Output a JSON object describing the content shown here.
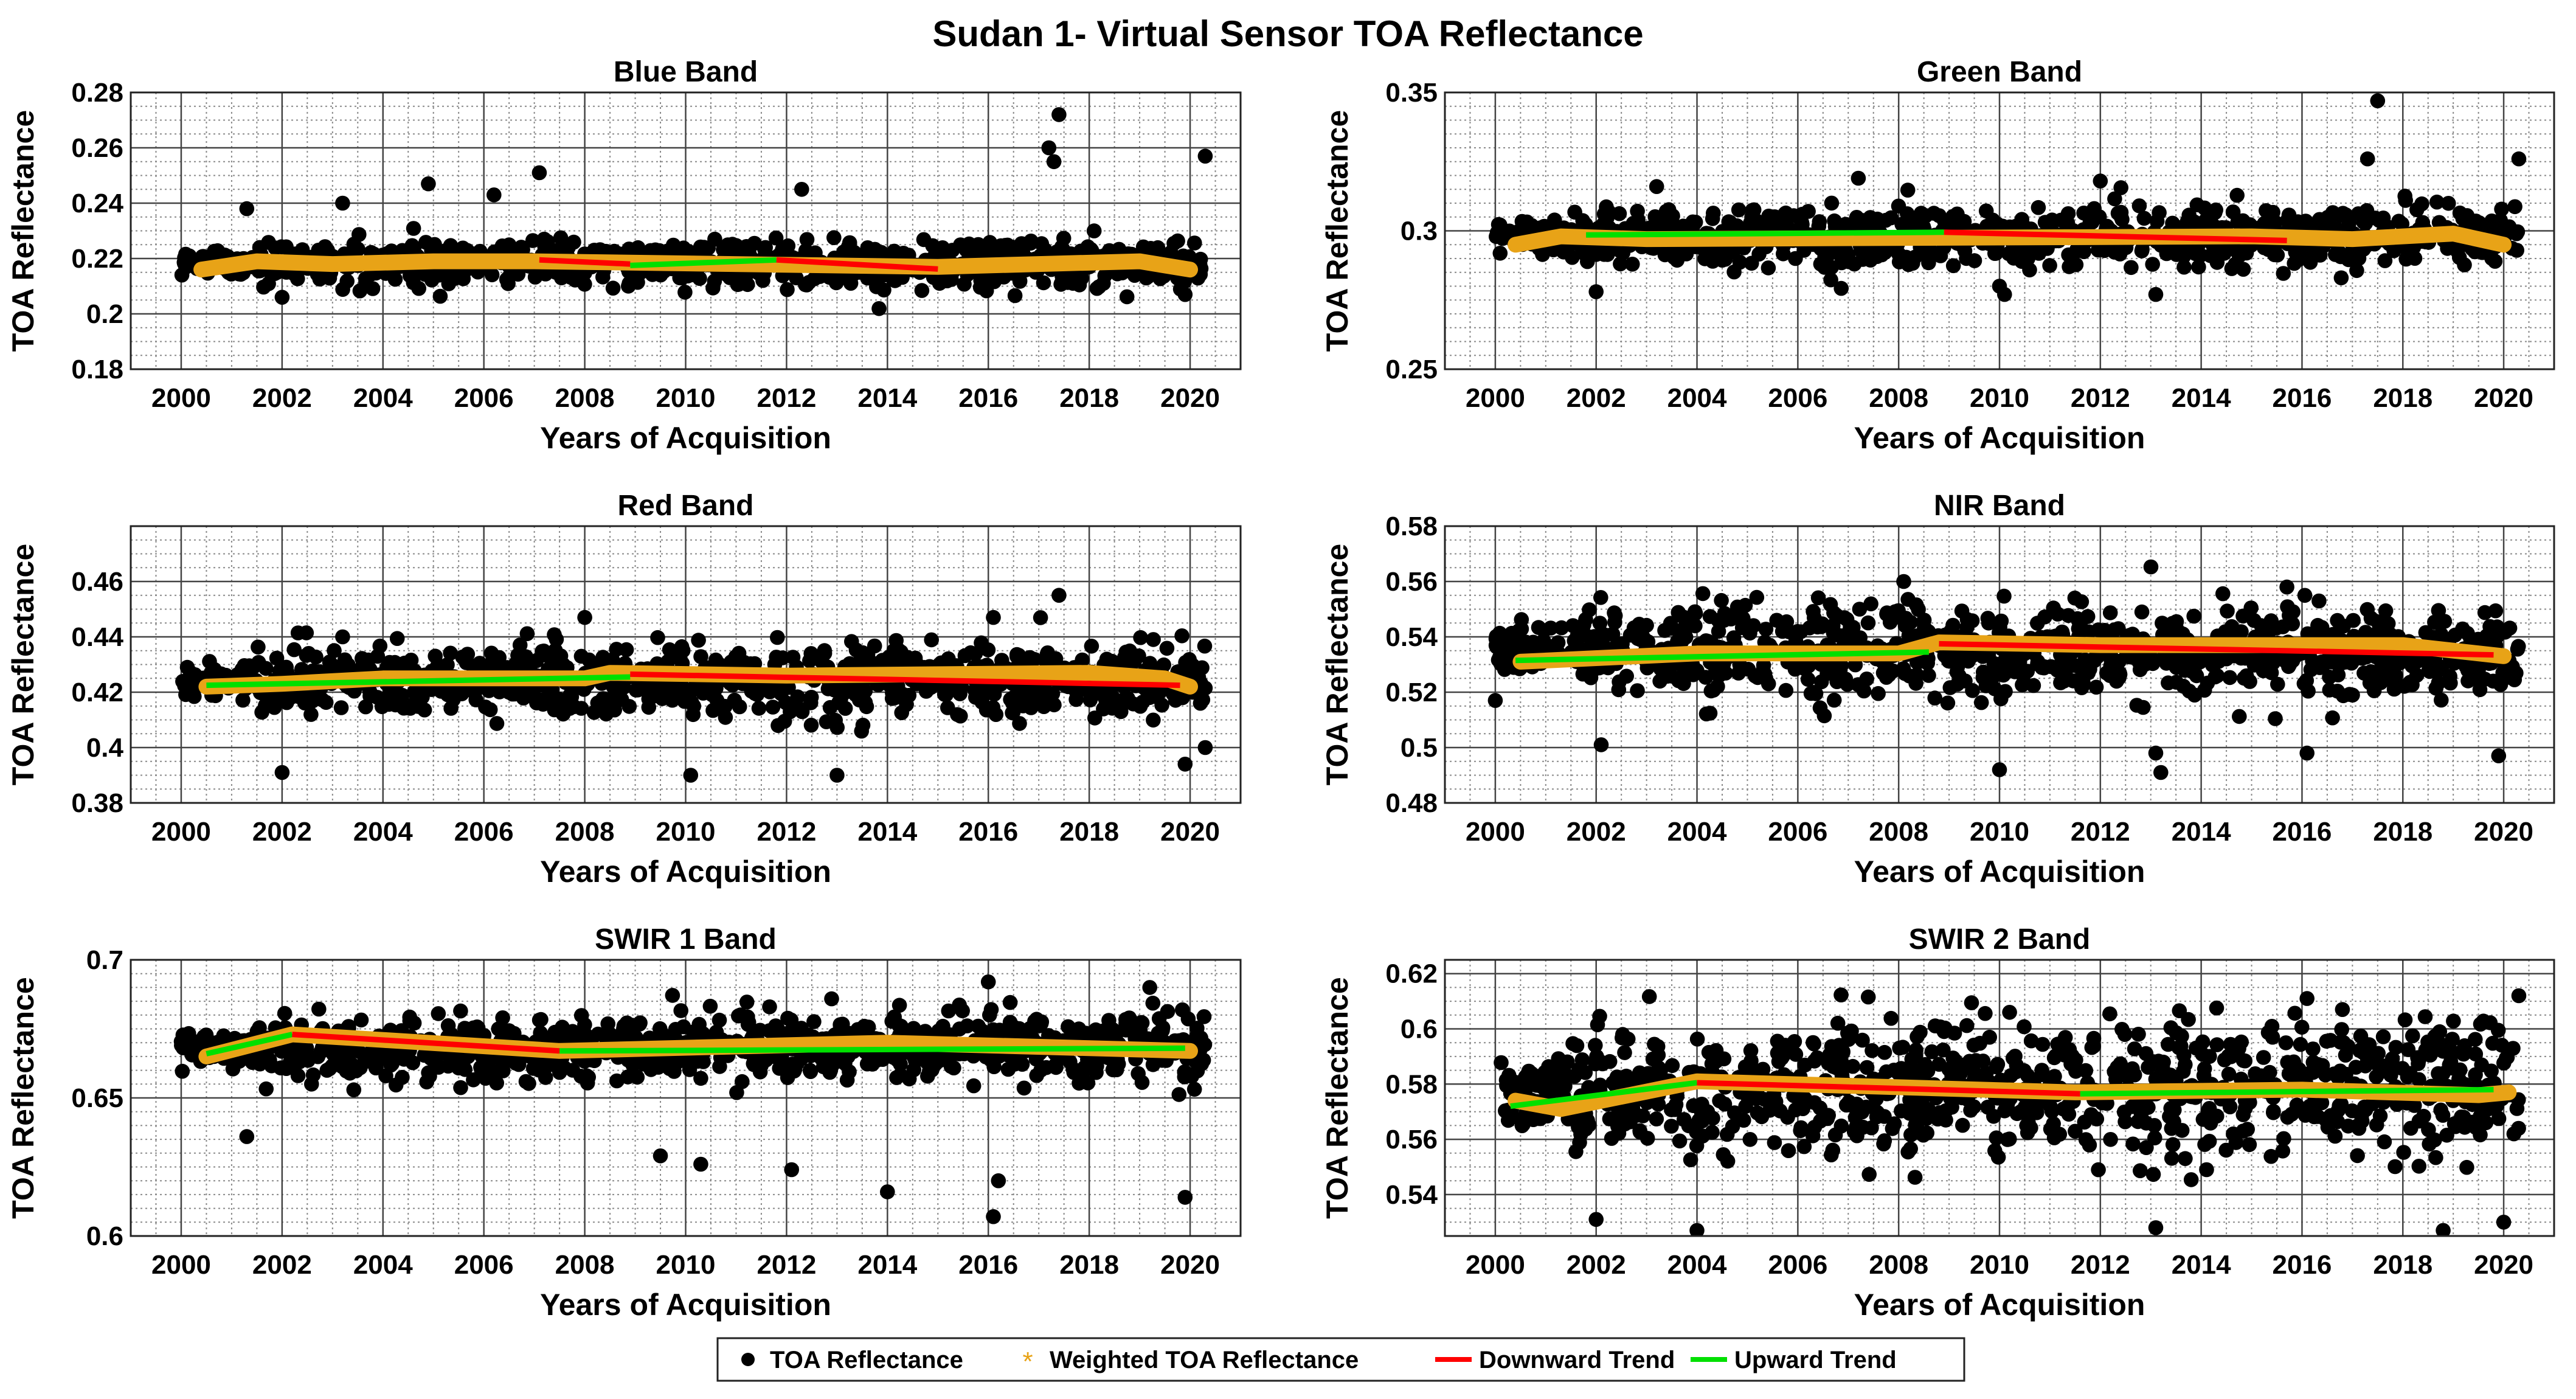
{
  "figure": {
    "title": "Sudan 1- Virtual Sensor TOA Reflectance"
  },
  "colors": {
    "points": "#000000",
    "weighted": "#E8A317",
    "downward": "#FF0000",
    "upward": "#00E000",
    "grid_major": "#444444",
    "grid_minor": "#8a8a8a"
  },
  "legend": {
    "items": [
      {
        "label": "TOA Reflectance",
        "marker": "dot"
      },
      {
        "label": "Weighted TOA Reflectance",
        "marker": "asterisk"
      },
      {
        "label": "Downward Trend",
        "marker": "red-line"
      },
      {
        "label": "Upward Trend",
        "marker": "green-line"
      }
    ]
  },
  "chart_data": [
    {
      "type": "scatter",
      "title": "Blue Band",
      "xlabel": "Years of Acquisition",
      "ylabel": "TOA Reflectance",
      "xlim": [
        1999,
        2021
      ],
      "ylim": [
        0.18,
        0.28
      ],
      "xticks": [
        "2000",
        "2002",
        "2004",
        "2006",
        "2008",
        "2010",
        "2012",
        "2014",
        "2016",
        "2018",
        "2020"
      ],
      "yticks": [
        "0.18",
        "0.2",
        "0.22",
        "0.24",
        "0.26",
        "0.28"
      ],
      "base": 0.218,
      "spread": 0.004,
      "outliers": [
        [
          2007.1,
          0.251
        ],
        [
          2017.4,
          0.272
        ],
        [
          2017.2,
          0.26
        ],
        [
          2017.3,
          0.255
        ],
        [
          2020.3,
          0.257
        ],
        [
          2004.9,
          0.247
        ],
        [
          2012.3,
          0.245
        ],
        [
          2001.3,
          0.238
        ],
        [
          2003.2,
          0.24
        ],
        [
          2006.2,
          0.243
        ],
        [
          2002.0,
          0.206
        ],
        [
          2019.9,
          0.207
        ]
      ],
      "weighted": [
        [
          2000.4,
          0.216
        ],
        [
          2001.5,
          0.219
        ],
        [
          2003,
          0.218
        ],
        [
          2005,
          0.219
        ],
        [
          2007,
          0.219
        ],
        [
          2015,
          0.217
        ],
        [
          2017,
          0.218
        ],
        [
          2019,
          0.219
        ],
        [
          2020,
          0.216
        ]
      ],
      "trends": [
        {
          "dir": "down",
          "x": [
            2007.1,
            2008.9
          ],
          "y": [
            0.2195,
            0.218
          ]
        },
        {
          "dir": "up",
          "x": [
            2008.9,
            2011.8
          ],
          "y": [
            0.2175,
            0.2195
          ]
        },
        {
          "dir": "down",
          "x": [
            2011.8,
            2015
          ],
          "y": [
            0.2195,
            0.2162
          ]
        }
      ]
    },
    {
      "type": "scatter",
      "title": "Green Band",
      "xlabel": "Years of Acquisition",
      "ylabel": "TOA Reflectance",
      "xlim": [
        1999,
        2021
      ],
      "ylim": [
        0.25,
        0.35
      ],
      "xticks": [
        "2000",
        "2002",
        "2004",
        "2006",
        "2008",
        "2010",
        "2012",
        "2014",
        "2016",
        "2018",
        "2020"
      ],
      "yticks": [
        "0.25",
        "0.3",
        "0.35"
      ],
      "base": 0.298,
      "spread": 0.005,
      "outliers": [
        [
          2017.5,
          0.347
        ],
        [
          2017.3,
          0.326
        ],
        [
          2020.3,
          0.326
        ],
        [
          2002.0,
          0.278
        ],
        [
          2010.0,
          0.28
        ],
        [
          2010.1,
          0.277
        ],
        [
          2013.1,
          0.277
        ],
        [
          2012.0,
          0.318
        ],
        [
          2003.2,
          0.316
        ],
        [
          2007.2,
          0.319
        ]
      ],
      "weighted": [
        [
          2000.4,
          0.295
        ],
        [
          2001.3,
          0.298
        ],
        [
          2003,
          0.297
        ],
        [
          2015,
          0.298
        ],
        [
          2017,
          0.297
        ],
        [
          2019,
          0.299
        ],
        [
          2020,
          0.295
        ]
      ],
      "trends": [
        {
          "dir": "up",
          "x": [
            2001.8,
            2008.9
          ],
          "y": [
            0.2985,
            0.2995
          ]
        },
        {
          "dir": "down",
          "x": [
            2008.9,
            2015.7
          ],
          "y": [
            0.2995,
            0.2965
          ]
        }
      ]
    },
    {
      "type": "scatter",
      "title": "Red Band",
      "xlabel": "Years of Acquisition",
      "ylabel": "TOA Reflectance",
      "xlim": [
        1999,
        2021
      ],
      "ylim": [
        0.38,
        0.48
      ],
      "xticks": [
        "2000",
        "2002",
        "2004",
        "2006",
        "2008",
        "2010",
        "2012",
        "2014",
        "2016",
        "2018",
        "2020"
      ],
      "yticks": [
        "0.38",
        "0.4",
        "0.42",
        "0.44",
        "0.46"
      ],
      "base": 0.424,
      "spread": 0.006,
      "outliers": [
        [
          2002.0,
          0.391
        ],
        [
          2010.1,
          0.39
        ],
        [
          2013.0,
          0.39
        ],
        [
          2017.4,
          0.455
        ],
        [
          2016.1,
          0.447
        ],
        [
          2019.9,
          0.394
        ],
        [
          2020.3,
          0.4
        ],
        [
          2008.0,
          0.447
        ],
        [
          2003.2,
          0.44
        ]
      ],
      "weighted": [
        [
          2000.5,
          0.422
        ],
        [
          2002,
          0.423
        ],
        [
          2004,
          0.425
        ],
        [
          2008,
          0.425
        ],
        [
          2008.5,
          0.427
        ],
        [
          2012,
          0.426
        ],
        [
          2018,
          0.427
        ],
        [
          2019.5,
          0.425
        ],
        [
          2020,
          0.422
        ]
      ],
      "trends": [
        {
          "dir": "up",
          "x": [
            2000.5,
            2008.9
          ],
          "y": [
            0.4225,
            0.4255
          ]
        },
        {
          "dir": "down",
          "x": [
            2008.9,
            2019.8
          ],
          "y": [
            0.4265,
            0.4225
          ]
        }
      ]
    },
    {
      "type": "scatter",
      "title": "NIR Band",
      "xlabel": "Years of Acquisition",
      "ylabel": "TOA Reflectance",
      "xlim": [
        1999,
        2021
      ],
      "ylim": [
        0.48,
        0.58
      ],
      "xticks": [
        "2000",
        "2002",
        "2004",
        "2006",
        "2008",
        "2010",
        "2012",
        "2014",
        "2016",
        "2018",
        "2020"
      ],
      "yticks": [
        "0.48",
        "0.5",
        "0.52",
        "0.54",
        "0.56",
        "0.58"
      ],
      "base": 0.535,
      "spread": 0.008,
      "outliers": [
        [
          2002.1,
          0.501
        ],
        [
          2010.0,
          0.492
        ],
        [
          2013.1,
          0.498
        ],
        [
          2013.2,
          0.491
        ],
        [
          2016.1,
          0.498
        ],
        [
          2019.9,
          0.497
        ],
        [
          2000.0,
          0.517
        ],
        [
          2008.1,
          0.56
        ],
        [
          2015.7,
          0.558
        ]
      ],
      "weighted": [
        [
          2000.5,
          0.531
        ],
        [
          2004,
          0.534
        ],
        [
          2008,
          0.534
        ],
        [
          2008.8,
          0.538
        ],
        [
          2012,
          0.537
        ],
        [
          2018,
          0.537
        ],
        [
          2020,
          0.533
        ]
      ],
      "trends": [
        {
          "dir": "up",
          "x": [
            2000.4,
            2008.6
          ],
          "y": [
            0.5315,
            0.5345
          ]
        },
        {
          "dir": "down",
          "x": [
            2008.8,
            2019.8
          ],
          "y": [
            0.5375,
            0.5335
          ]
        }
      ]
    },
    {
      "type": "scatter",
      "title": "SWIR 1 Band",
      "xlabel": "Years of Acquisition",
      "ylabel": "TOA Reflectance",
      "xlim": [
        1999,
        2021
      ],
      "ylim": [
        0.6,
        0.7
      ],
      "xticks": [
        "2000",
        "2002",
        "2004",
        "2006",
        "2008",
        "2010",
        "2012",
        "2014",
        "2016",
        "2018",
        "2020"
      ],
      "yticks": [
        "0.6",
        "0.65",
        "0.7"
      ],
      "base": 0.668,
      "spread": 0.006,
      "outliers": [
        [
          2016.1,
          0.607
        ],
        [
          2016.2,
          0.62
        ],
        [
          2019.9,
          0.614
        ],
        [
          2014.0,
          0.616
        ],
        [
          2012.1,
          0.624
        ],
        [
          2009.5,
          0.629
        ],
        [
          2010.3,
          0.626
        ],
        [
          2001.3,
          0.636
        ],
        [
          2016.0,
          0.692
        ],
        [
          2019.2,
          0.69
        ]
      ],
      "weighted": [
        [
          2000.5,
          0.665
        ],
        [
          2002.2,
          0.673
        ],
        [
          2004,
          0.671
        ],
        [
          2007.5,
          0.667
        ],
        [
          2014,
          0.67
        ],
        [
          2020,
          0.667
        ]
      ],
      "trends": [
        {
          "dir": "up",
          "x": [
            2000.5,
            2002.2
          ],
          "y": [
            0.666,
            0.673
          ]
        },
        {
          "dir": "down",
          "x": [
            2002.2,
            2007.5
          ],
          "y": [
            0.673,
            0.667
          ]
        },
        {
          "dir": "up",
          "x": [
            2007.5,
            2019.9
          ],
          "y": [
            0.667,
            0.668
          ]
        }
      ]
    },
    {
      "type": "scatter",
      "title": "SWIR 2 Band",
      "xlabel": "Years of Acquisition",
      "ylabel": "TOA Reflectance",
      "xlim": [
        1999,
        2021
      ],
      "ylim": [
        0.525,
        0.625
      ],
      "xticks": [
        "2000",
        "2002",
        "2004",
        "2006",
        "2008",
        "2010",
        "2012",
        "2014",
        "2016",
        "2018",
        "2020"
      ],
      "yticks": [
        "0.54",
        "0.56",
        "0.58",
        "0.6",
        "0.62"
      ],
      "base": 0.578,
      "spread": 0.012,
      "outliers": [
        [
          2004.0,
          0.527
        ],
        [
          2002.0,
          0.531
        ],
        [
          2013.1,
          0.528
        ],
        [
          2018.8,
          0.527
        ],
        [
          2020.0,
          0.53
        ],
        [
          2020.3,
          0.612
        ],
        [
          2016.1,
          0.611
        ],
        [
          2010.2,
          0.606
        ]
      ],
      "weighted": [
        [
          2000.4,
          0.574
        ],
        [
          2001.3,
          0.571
        ],
        [
          2004,
          0.581
        ],
        [
          2011.5,
          0.577
        ],
        [
          2016,
          0.578
        ],
        [
          2019.5,
          0.576
        ],
        [
          2020.1,
          0.577
        ]
      ],
      "trends": [
        {
          "dir": "up",
          "x": [
            2000.3,
            2004.0
          ],
          "y": [
            0.572,
            0.5805
          ]
        },
        {
          "dir": "down",
          "x": [
            2004.0,
            2011.6
          ],
          "y": [
            0.5805,
            0.5765
          ]
        },
        {
          "dir": "up",
          "x": [
            2011.6,
            2019.8
          ],
          "y": [
            0.5765,
            0.578
          ]
        }
      ]
    }
  ]
}
